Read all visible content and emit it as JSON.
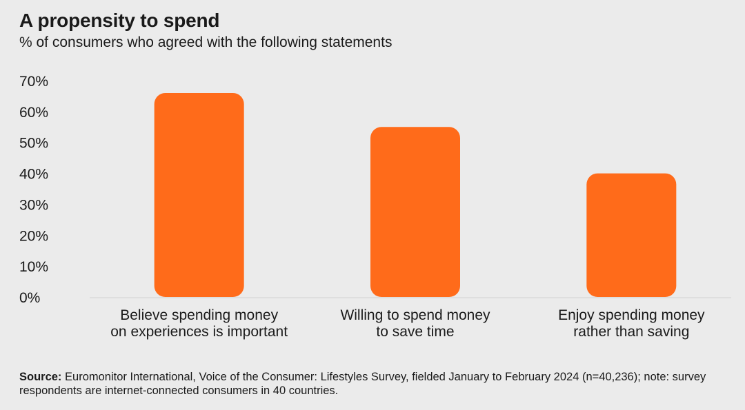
{
  "header": {
    "title": "A propensity to spend",
    "subtitle": "% of consumers who agreed with the following statements"
  },
  "colors": {
    "bar": "#ff6b1a",
    "axis": "#d9d9d9",
    "text": "#1a1a1a",
    "background": "#ebebeb"
  },
  "chart_data": {
    "type": "bar",
    "title": "A propensity to spend",
    "subtitle": "% of consumers who agreed with the following statements",
    "categories": [
      [
        "Believe spending money",
        "on experiences is important"
      ],
      [
        "Willing to spend money",
        "to save time"
      ],
      [
        "Enjoy spending money",
        "rather than saving"
      ]
    ],
    "values": [
      66,
      55,
      40
    ],
    "y_ticks": [
      "0%",
      "10%",
      "20%",
      "30%",
      "40%",
      "50%",
      "60%",
      "70%"
    ],
    "ylim": [
      0,
      70
    ],
    "grid": false,
    "legend": "none"
  },
  "footer": {
    "source_label": "Source:",
    "source_text": "Euromonitor International, Voice of the Consumer: Lifestyles Survey, fielded January to February 2024 (n=40,236); note: survey respondents are internet-connected consumers in 40 countries."
  }
}
